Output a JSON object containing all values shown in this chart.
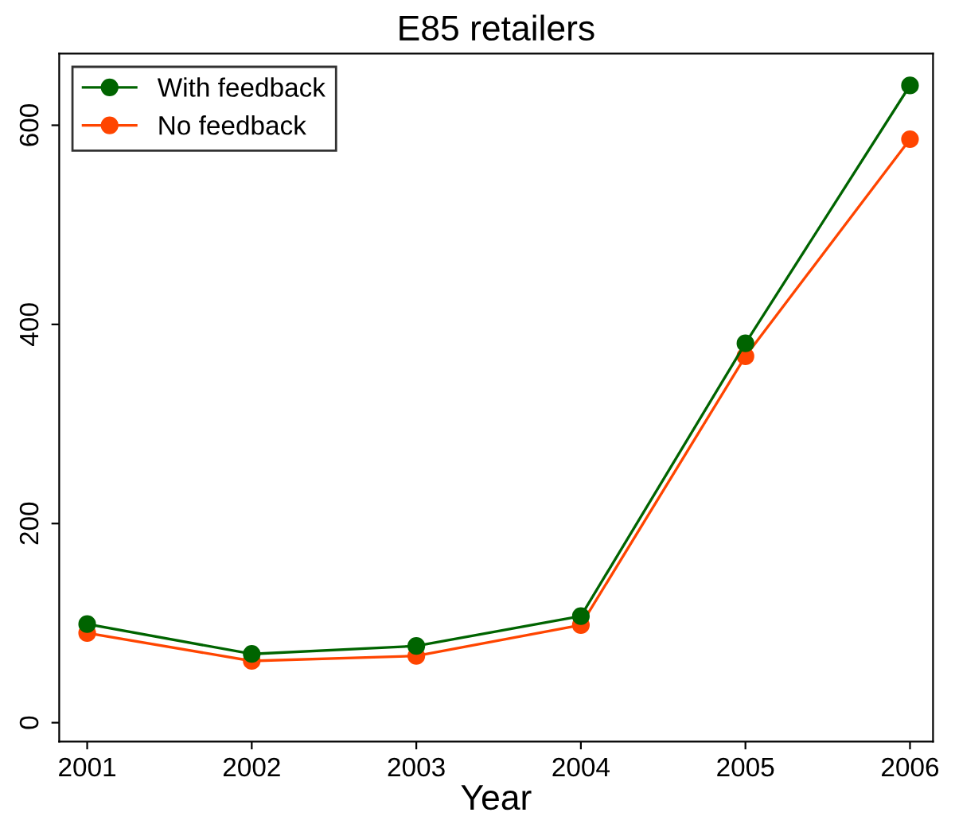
{
  "chart_data": {
    "type": "line",
    "title": "E85 retailers",
    "xlabel": "Year",
    "x": [
      2001,
      2002,
      2003,
      2004,
      2005,
      2006
    ],
    "series": [
      {
        "name": "With feedback",
        "color": "#006400",
        "values": [
          99,
          69,
          77,
          107,
          381,
          640
        ]
      },
      {
        "name": "No feedback",
        "color": "#ff4500",
        "values": [
          90,
          62,
          67,
          98,
          368,
          586
        ]
      }
    ],
    "xlim": [
      2000.83,
      2006.14
    ],
    "xticks": [
      2001,
      2002,
      2003,
      2004,
      2005,
      2006
    ],
    "ylim": [
      -19,
      672
    ],
    "yticks": [
      0,
      200,
      400,
      600
    ],
    "grid": false,
    "legend": "top left",
    "marker": "circle",
    "line_style": "solid"
  }
}
